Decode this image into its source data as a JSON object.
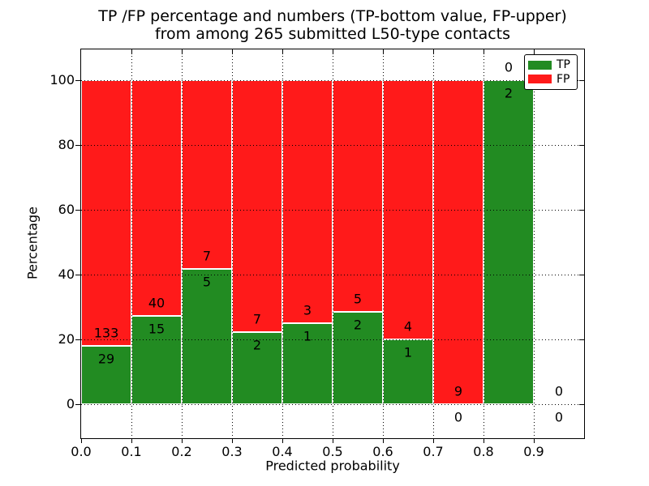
{
  "figure": {
    "title_line1": "TP /FP percentage and numbers (TP-bottom value, FP-upper)",
    "title_line2": "from among 265 submitted L50-type contacts"
  },
  "chart_data": {
    "type": "bar",
    "variant": "stacked-normalized-histogram",
    "title": "TP /FP percentage and numbers (TP-bottom value, FP-upper)\nfrom among 265 submitted L50-type contacts",
    "xlabel": "Predicted probability",
    "ylabel": "Percentage",
    "total_contacts": 265,
    "xlim": [
      0.0,
      1.0
    ],
    "ylim": [
      -10.5,
      109.5
    ],
    "bin_width": 0.1,
    "xticks": [
      "0.0",
      "0.1",
      "0.2",
      "0.3",
      "0.4",
      "0.5",
      "0.6",
      "0.7",
      "0.8",
      "0.9"
    ],
    "yticks": [
      0,
      20,
      40,
      60,
      80,
      100
    ],
    "grid": {
      "style": "dotted",
      "color": "#000000",
      "above_bars": true
    },
    "legend": {
      "position": "upper right",
      "entries": [
        {
          "label": "TP",
          "color": "#228b22"
        },
        {
          "label": "FP",
          "color": "#ff1a1a"
        }
      ]
    },
    "colors": {
      "tp": "#228b22",
      "fp": "#ff1a1a",
      "bar_edge": "#ffffff",
      "text": "#000000"
    },
    "bins": [
      {
        "range": "0.0-0.1",
        "tp": 29,
        "fp": 133,
        "tp_percent": 17.9
      },
      {
        "range": "0.1-0.2",
        "tp": 15,
        "fp": 40,
        "tp_percent": 27.27
      },
      {
        "range": "0.2-0.3",
        "tp": 5,
        "fp": 7,
        "tp_percent": 41.67
      },
      {
        "range": "0.3-0.4",
        "tp": 2,
        "fp": 7,
        "tp_percent": 22.22
      },
      {
        "range": "0.4-0.5",
        "tp": 1,
        "fp": 3,
        "tp_percent": 25.0
      },
      {
        "range": "0.5-0.6",
        "tp": 2,
        "fp": 5,
        "tp_percent": 28.57
      },
      {
        "range": "0.6-0.7",
        "tp": 1,
        "fp": 4,
        "tp_percent": 20.0
      },
      {
        "range": "0.7-0.8",
        "tp": 0,
        "fp": 9,
        "tp_percent": 0.0
      },
      {
        "range": "0.8-0.9",
        "tp": 2,
        "fp": 0,
        "tp_percent": 100.0
      },
      {
        "range": "0.9-1.0",
        "tp": 0,
        "fp": 0,
        "tp_percent": null
      }
    ]
  }
}
